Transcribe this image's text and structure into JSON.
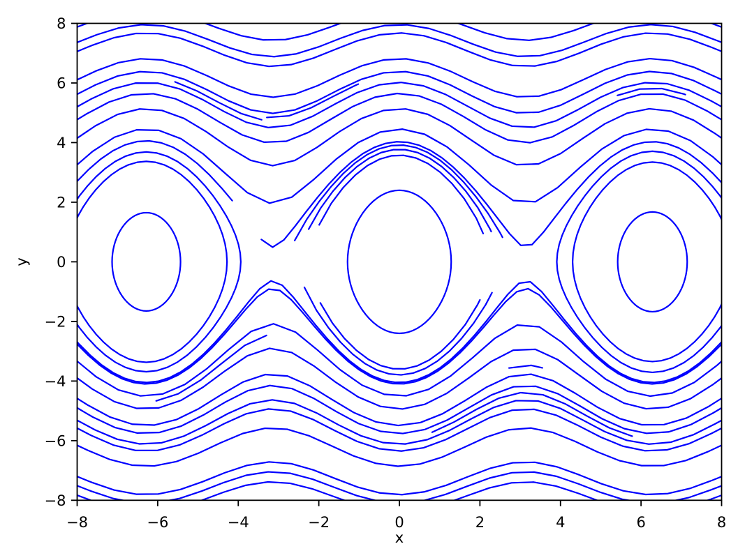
{
  "figure": {
    "background": "#ffffff",
    "frame_color": "#000000",
    "text_color": "#000000"
  },
  "chart_data": {
    "type": "line",
    "subtype": "phase-portrait-contours",
    "title": "",
    "xlabel": "x",
    "ylabel": "y",
    "xlim": [
      -8,
      8
    ],
    "ylim": [
      -8,
      8
    ],
    "xticks": [
      -8,
      -6,
      -4,
      -2,
      0,
      2,
      4,
      6,
      8
    ],
    "yticks": [
      -8,
      -6,
      -4,
      -2,
      0,
      2,
      4,
      6,
      8
    ],
    "grid": false,
    "legend": null,
    "line_color": "#0000ff",
    "line_width": 2.2,
    "model": "trajectories of H(x,y) = y^2/8 - cos(x); curves satisfy y = sign*sqrt(8*(E + cos(x)))",
    "fixed_point_centers_x": [
      -6.2832,
      0,
      6.2832
    ],
    "saddle_points_x": [
      -3.1416,
      3.1416
    ],
    "curves": [
      {
        "kind": "open",
        "sign": 1,
        "E": 7.9
      },
      {
        "kind": "open",
        "sign": 1,
        "E": 6.92
      },
      {
        "kind": "open",
        "sign": 1,
        "E": 6.37
      },
      {
        "kind": "open",
        "sign": 1,
        "E": 4.81
      },
      {
        "kind": "open",
        "sign": 1,
        "E": 4.1
      },
      {
        "kind": "open",
        "sign": 1,
        "E": 3.53
      },
      {
        "kind": "open",
        "sign": 1,
        "E": 2.99
      },
      {
        "kind": "open",
        "sign": 1,
        "E": 2.3
      },
      {
        "kind": "open",
        "sign": 1,
        "E": 1.48
      },
      {
        "kind": "open",
        "sign": 1,
        "E": 1.03,
        "x": [
          -3.45,
          8.35
        ],
        "step": 0.28
      },
      {
        "kind": "open",
        "sign": 1,
        "E": 1.06,
        "x": [
          -8.35,
          -4.15
        ],
        "step": 0.3
      },
      {
        "kind": "open",
        "sign": 1,
        "E": 3.92,
        "x": [
          -3.55,
          -1.02
        ]
      },
      {
        "kind": "open",
        "sign": 1,
        "E": 3.8,
        "x": [
          -5.75,
          -3.42
        ]
      },
      {
        "kind": "open",
        "sign": 1,
        "E": 3.25,
        "x": [
          5.2,
          7.1
        ]
      },
      {
        "kind": "open",
        "sign": 1,
        "E": 0.6,
        "x": [
          -2.02,
          2.08
        ],
        "step": 0.3
      },
      {
        "kind": "open",
        "sign": 1,
        "E": 0.78,
        "x": [
          -2.32,
          2.28
        ],
        "step": 0.3
      },
      {
        "kind": "open",
        "sign": 1,
        "E": 0.92,
        "x": [
          -2.62,
          2.56
        ],
        "step": 0.3
      },
      {
        "kind": "open",
        "sign": -1,
        "E": 1.05,
        "step": 0.28
      },
      {
        "kind": "open",
        "sign": -1,
        "E": 1.1,
        "step": 0.28
      },
      {
        "kind": "open",
        "sign": -1,
        "E": 1.54
      },
      {
        "kind": "open",
        "sign": -1,
        "E": 2.05
      },
      {
        "kind": "open",
        "sign": -1,
        "E": 2.77
      },
      {
        "kind": "open",
        "sign": -1,
        "E": 3.15
      },
      {
        "kind": "open",
        "sign": -1,
        "E": 3.68
      },
      {
        "kind": "open",
        "sign": -1,
        "E": 4.04
      },
      {
        "kind": "open",
        "sign": -1,
        "E": 4.88
      },
      {
        "kind": "open",
        "sign": -1,
        "E": 6.63
      },
      {
        "kind": "open",
        "sign": -1,
        "E": 7.2
      },
      {
        "kind": "open",
        "sign": -1,
        "E": 7.81
      },
      {
        "kind": "open",
        "sign": -1,
        "E": 2.5,
        "x": [
          2.5,
          3.55
        ]
      },
      {
        "kind": "open",
        "sign": -1,
        "E": 3.4,
        "x": [
          0.75,
          5.78
        ]
      },
      {
        "kind": "open",
        "sign": -1,
        "E": 1.75,
        "x": [
          -6.25,
          -3.3
        ]
      },
      {
        "kind": "open",
        "sign": -1,
        "E": 0.62,
        "x": [
          -2.05,
          2.0
        ],
        "step": 0.3
      },
      {
        "kind": "open",
        "sign": -1,
        "E": 0.8,
        "x": [
          -2.38,
          2.3
        ],
        "step": 0.3
      },
      {
        "kind": "closed",
        "center": 0,
        "E": -0.28,
        "n": 72
      },
      {
        "kind": "closed",
        "center": -6.2832,
        "E": -0.66,
        "n": 72
      },
      {
        "kind": "closed",
        "center": -6.2832,
        "E": 0.42,
        "n": 56
      },
      {
        "kind": "closed",
        "center": -6.2832,
        "E": 0.7,
        "n": 56
      },
      {
        "kind": "closed",
        "center": 6.2832,
        "E": -0.65,
        "n": 72
      },
      {
        "kind": "closed",
        "center": 6.2832,
        "E": 0.4,
        "n": 56
      },
      {
        "kind": "closed",
        "center": 6.2832,
        "E": 0.72,
        "n": 56
      }
    ]
  }
}
